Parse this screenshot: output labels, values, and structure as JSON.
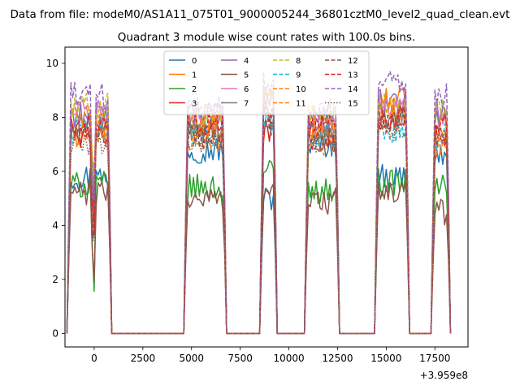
{
  "chart_data": {
    "type": "line",
    "suptitle": "Data from file: modeM0/AS1A11_075T01_9000005244_36801cztM0_level2_quad_clean.evt",
    "title": "Quadrant 3 module wise count rates with 100.0s bins.",
    "xlabel": "",
    "ylabel": "",
    "x_offset_label": "+3.959e8",
    "xlim": [
      -1500,
      19200
    ],
    "ylim": [
      -0.5,
      10.6
    ],
    "xticks": [
      0,
      2500,
      5000,
      7500,
      10000,
      12500,
      15000,
      17500
    ],
    "xtick_labels": [
      "0",
      "2500",
      "5000",
      "7500",
      "10000",
      "12500",
      "15000",
      "17500"
    ],
    "yticks": [
      0,
      2,
      4,
      6,
      8,
      10
    ],
    "ytick_labels": [
      "0",
      "2",
      "4",
      "6",
      "8",
      "10"
    ],
    "grid": false,
    "legend_position": "upper center",
    "legend_columns": 4,
    "segments": [
      {
        "x_start": -1300,
        "x_end": 800
      },
      {
        "x_start": 4700,
        "x_end": 6700
      },
      {
        "x_start": 8600,
        "x_end": 9300
      },
      {
        "x_start": 10900,
        "x_end": 12500
      },
      {
        "x_start": 14500,
        "x_end": 16100
      },
      {
        "x_start": 17400,
        "x_end": 18200
      }
    ],
    "series": [
      {
        "name": "0",
        "color": "#1f77b4",
        "dash": "solid",
        "level": 6.9,
        "levels": [
          5.8,
          6.8,
          5.0,
          7.0,
          5.8,
          6.6
        ]
      },
      {
        "name": "1",
        "color": "#ff7f0e",
        "dash": "solid",
        "level": 7.6,
        "levels": [
          7.3,
          7.7,
          8.6,
          7.6,
          8.6,
          7.4
        ]
      },
      {
        "name": "2",
        "color": "#2ca02c",
        "dash": "solid",
        "level": 5.4,
        "levels": [
          5.5,
          5.4,
          6.0,
          5.3,
          5.6,
          5.5
        ]
      },
      {
        "name": "3",
        "color": "#d62728",
        "dash": "solid",
        "level": 7.4,
        "levels": [
          7.4,
          7.5,
          7.6,
          7.3,
          7.9,
          7.4
        ]
      },
      {
        "name": "4",
        "color": "#9467bd",
        "dash": "solid",
        "level": 8.0,
        "levels": [
          8.1,
          8.1,
          8.8,
          7.9,
          8.6,
          8.3
        ]
      },
      {
        "name": "5",
        "color": "#8c564b",
        "dash": "solid",
        "level": 5.0,
        "levels": [
          5.2,
          5.0,
          5.4,
          4.9,
          5.2,
          4.5
        ]
      },
      {
        "name": "6",
        "color": "#e377c2",
        "dash": "solid",
        "level": 8.2,
        "levels": [
          8.2,
          8.0,
          8.8,
          8.0,
          8.4,
          8.0
        ]
      },
      {
        "name": "7",
        "color": "#7f7f7f",
        "dash": "solid",
        "level": 7.8,
        "levels": [
          7.8,
          7.6,
          8.2,
          7.7,
          8.0,
          7.8
        ]
      },
      {
        "name": "8",
        "color": "#bcbd22",
        "dash": "dashed",
        "level": 8.3,
        "levels": [
          8.4,
          8.0,
          9.0,
          8.0,
          8.4,
          8.2
        ]
      },
      {
        "name": "9",
        "color": "#17becf",
        "dash": "dashed",
        "level": 7.5,
        "levels": [
          7.5,
          7.4,
          7.8,
          7.2,
          7.5,
          7.3
        ]
      },
      {
        "name": "10",
        "color": "#ff7f0e",
        "dash": "dashed",
        "level": 7.2,
        "levels": [
          7.4,
          7.2,
          8.5,
          7.0,
          8.0,
          7.0
        ]
      },
      {
        "name": "11",
        "color": "#ff7f0e",
        "dash": "dashed",
        "level": 7.9,
        "levels": [
          8.0,
          7.9,
          8.6,
          7.6,
          8.4,
          7.6
        ]
      },
      {
        "name": "12",
        "color": "#8c564b",
        "dash": "dashed",
        "level": 7.4,
        "levels": [
          7.4,
          7.3,
          8.0,
          7.2,
          7.8,
          7.3
        ]
      },
      {
        "name": "13",
        "color": "#d62728",
        "dash": "dashed",
        "level": 7.7,
        "levels": [
          7.6,
          7.8,
          8.2,
          7.6,
          8.0,
          7.7
        ]
      },
      {
        "name": "14",
        "color": "#9467bd",
        "dash": "dashed",
        "level": 8.6,
        "levels": [
          8.8,
          8.4,
          9.2,
          8.2,
          9.4,
          8.8
        ]
      },
      {
        "name": "15",
        "color": "#8c564b",
        "dash": "dotted",
        "level": 7.3,
        "levels": [
          7.1,
          7.2,
          7.7,
          7.1,
          7.6,
          7.2
        ]
      }
    ]
  }
}
